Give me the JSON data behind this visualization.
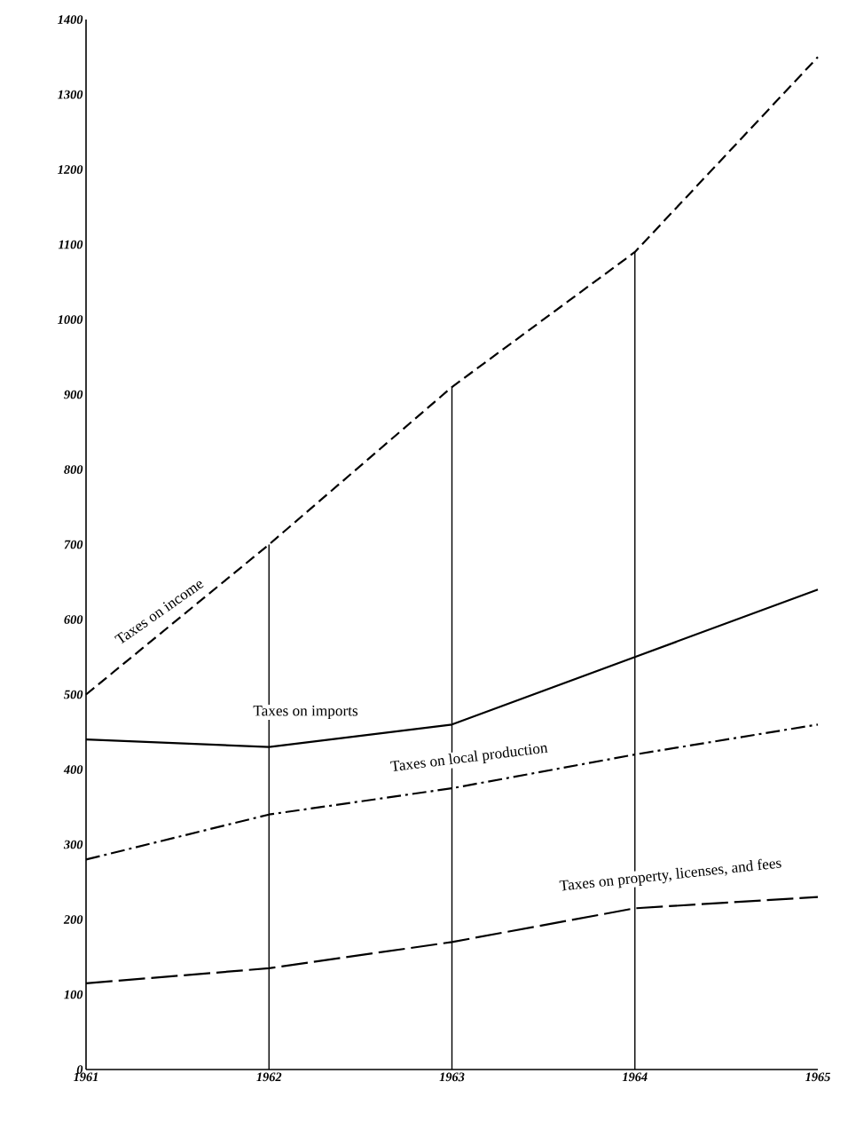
{
  "chart_data": {
    "type": "line",
    "x": [
      1961,
      1962,
      1963,
      1964,
      1965
    ],
    "series": [
      {
        "name": "Taxes on income",
        "color": "#000000",
        "line_style": "dashed",
        "values": [
          500,
          700,
          910,
          1090,
          1350
        ]
      },
      {
        "name": "Taxes on imports",
        "color": "#000000",
        "line_style": "solid",
        "values": [
          440,
          430,
          460,
          550,
          640
        ]
      },
      {
        "name": "Taxes on local production",
        "color": "#000000",
        "line_style": "dashdot",
        "values": [
          280,
          340,
          375,
          420,
          460
        ]
      },
      {
        "name": "Taxes on property, licenses, and fees",
        "color": "#000000",
        "line_style": "longdash",
        "values": [
          115,
          135,
          170,
          215,
          230
        ]
      }
    ],
    "xlim": [
      1961,
      1965
    ],
    "ylim": [
      0,
      1400
    ],
    "xticks": [
      1961,
      1962,
      1963,
      1964,
      1965
    ],
    "yticks": [
      0,
      100,
      200,
      300,
      400,
      500,
      600,
      700,
      800,
      900,
      1000,
      1100,
      1200,
      1300,
      1400
    ],
    "ref_lines": [
      {
        "axis": "x",
        "value": 1962
      },
      {
        "axis": "x",
        "value": 1963
      },
      {
        "axis": "x",
        "value": 1964
      }
    ],
    "grid": false,
    "marker": "none"
  }
}
